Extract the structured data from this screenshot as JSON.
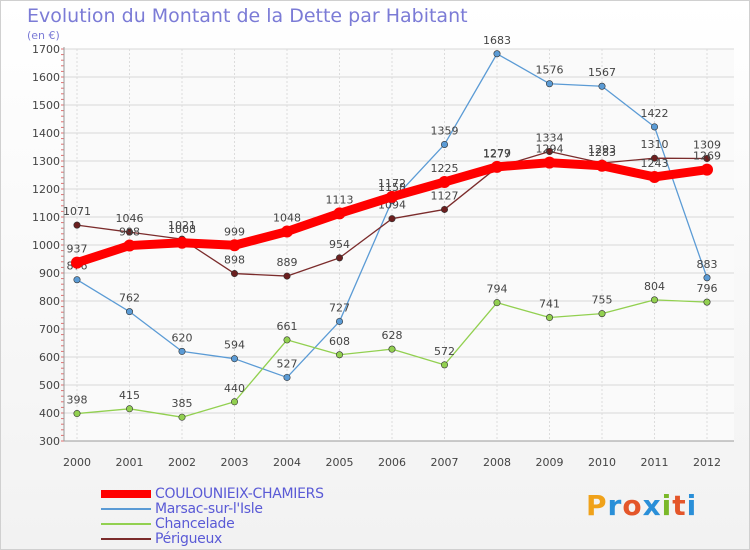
{
  "header": {
    "title": "Evolution du Montant de la Dette par Habitant",
    "unit": "(en €)"
  },
  "brand": {
    "text": "Proxiti",
    "colors": [
      "#f0a21a",
      "#2a8fd8",
      "#e4562a",
      "#2a8fd8",
      "#7ab829",
      "#e4562a",
      "#2a8fd8"
    ]
  },
  "chart_data": {
    "type": "line",
    "title": "Evolution du Montant de la Dette par Habitant",
    "ylabel": "(en €)",
    "xlabel": "",
    "categories": [
      "2000",
      "2001",
      "2002",
      "2003",
      "2004",
      "2005",
      "2006",
      "2007",
      "2008",
      "2009",
      "2010",
      "2011",
      "2012"
    ],
    "ylim": [
      300,
      1700
    ],
    "yticks": [
      300,
      400,
      500,
      600,
      700,
      800,
      900,
      1000,
      1100,
      1200,
      1300,
      1400,
      1500,
      1600,
      1700
    ],
    "grid": true,
    "legend_position": "bottom-left",
    "series": [
      {
        "name": "COULOUNIEIX-CHAMIERS",
        "color": "#ff0000",
        "values": [
          937,
          998,
          1008,
          999,
          1048,
          1113,
          1172,
          1225,
          1279,
          1294,
          1283,
          1243,
          1269
        ]
      },
      {
        "name": "Marsac-sur-l'Isle",
        "color": "#5b9bd5",
        "values": [
          876,
          762,
          620,
          594,
          527,
          727,
          1158,
          1359,
          1683,
          1576,
          1567,
          1422,
          883
        ]
      },
      {
        "name": "Chancelade",
        "color": "#92d050",
        "values": [
          398,
          415,
          385,
          440,
          661,
          608,
          628,
          572,
          794,
          741,
          755,
          804,
          796
        ]
      },
      {
        "name": "Périgueux",
        "color": "#7b2c2c",
        "values": [
          1071,
          1046,
          1021,
          898,
          889,
          954,
          1094,
          1127,
          1277,
          1334,
          1293,
          1310,
          1309
        ]
      }
    ]
  }
}
